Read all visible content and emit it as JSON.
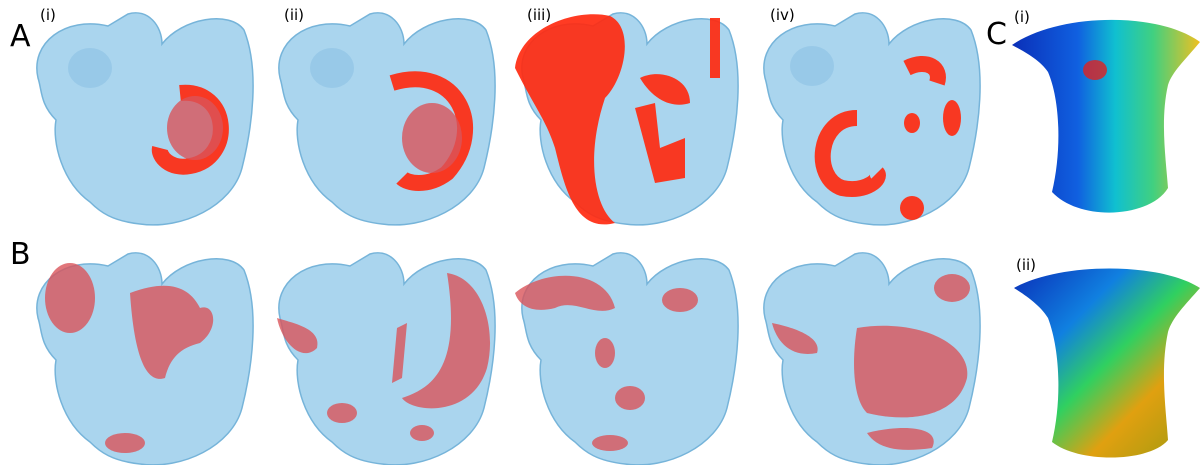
{
  "panels": [
    {
      "label": "A",
      "items": [
        "(i)",
        "(ii)",
        "(iii)",
        "(iv)"
      ]
    },
    {
      "label": "B"
    },
    {
      "label": "C",
      "items": [
        "(i)",
        "(ii)"
      ]
    }
  ]
}
